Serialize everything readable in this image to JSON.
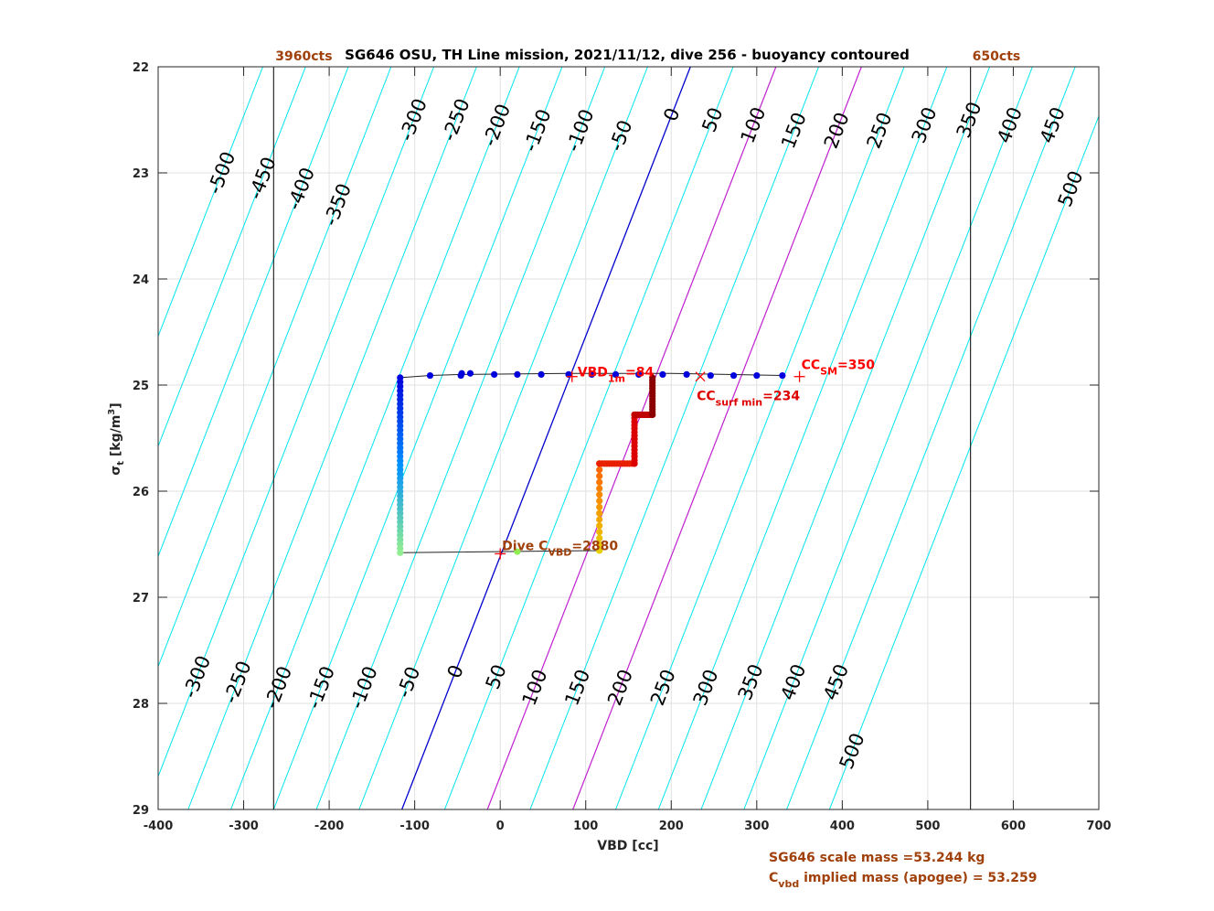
{
  "chart_data": {
    "type": "scatter",
    "title": "SG646 OSU, TH Line mission, 2021/11/12, dive 256 - buoyancy contoured",
    "xlabel": "VBD [cc]",
    "ylabel": "σt [kg/m3]",
    "ylabel_parts": {
      "sym": "σ",
      "sub": "t",
      "rest": " [kg/m",
      "sup": "3",
      "end": "]"
    },
    "xlim": [
      -400,
      700
    ],
    "ylim": [
      29,
      22
    ],
    "y_reversed": true,
    "grid": true,
    "xticks": [
      -400,
      -300,
      -200,
      -100,
      0,
      100,
      200,
      300,
      400,
      500,
      600,
      700
    ],
    "yticks": [
      22,
      23,
      24,
      25,
      26,
      27,
      28,
      29
    ],
    "contours": {
      "levels": [
        -500,
        -450,
        -400,
        -350,
        -300,
        -250,
        -200,
        -150,
        -100,
        -50,
        0,
        50,
        100,
        150,
        200,
        250,
        300,
        350,
        400,
        450,
        500
      ],
      "x_at_sigma29_for_zero": -115,
      "slope_cc_per_kgm3": -48.2,
      "zero_color": "#0000cd",
      "highlight_levels": [
        100,
        200
      ],
      "highlight_color": "#c020d0",
      "other_color": "#00e5ee",
      "labels_top": [
        {
          "level": -500,
          "sigma": 23.0
        },
        {
          "level": -450,
          "sigma": 23.05
        },
        {
          "level": -400,
          "sigma": 23.15
        },
        {
          "level": -350,
          "sigma": 23.3
        },
        {
          "level": -300,
          "sigma": 22.5
        },
        {
          "level": -250,
          "sigma": 22.5
        },
        {
          "level": -200,
          "sigma": 22.55
        },
        {
          "level": -150,
          "sigma": 22.6
        },
        {
          "level": -100,
          "sigma": 22.6
        },
        {
          "level": -50,
          "sigma": 22.65
        },
        {
          "level": 0,
          "sigma": 22.45
        },
        {
          "level": 50,
          "sigma": 22.5
        },
        {
          "level": 100,
          "sigma": 22.55
        },
        {
          "level": 150,
          "sigma": 22.6
        },
        {
          "level": 200,
          "sigma": 22.6
        },
        {
          "level": 250,
          "sigma": 22.6
        },
        {
          "level": 300,
          "sigma": 22.55
        },
        {
          "level": 350,
          "sigma": 22.5
        },
        {
          "level": 400,
          "sigma": 22.55
        },
        {
          "level": 450,
          "sigma": 22.55
        },
        {
          "level": 500,
          "sigma": 23.15
        }
      ],
      "labels_bottom": [
        {
          "level": -300,
          "sigma": 27.75
        },
        {
          "level": -250,
          "sigma": 27.8
        },
        {
          "level": -200,
          "sigma": 27.85
        },
        {
          "level": -150,
          "sigma": 27.85
        },
        {
          "level": -100,
          "sigma": 27.85
        },
        {
          "level": -50,
          "sigma": 27.8
        },
        {
          "level": 0,
          "sigma": 27.7
        },
        {
          "level": 50,
          "sigma": 27.75
        },
        {
          "level": 100,
          "sigma": 27.85
        },
        {
          "level": 150,
          "sigma": 27.85
        },
        {
          "level": 200,
          "sigma": 27.85
        },
        {
          "level": 250,
          "sigma": 27.85
        },
        {
          "level": 300,
          "sigma": 27.85
        },
        {
          "level": 350,
          "sigma": 27.8
        },
        {
          "level": 400,
          "sigma": 27.8
        },
        {
          "level": 450,
          "sigma": 27.8
        },
        {
          "level": 500,
          "sigma": 28.45
        }
      ]
    },
    "vertical_lines": [
      {
        "x": -265,
        "label": "3960cts"
      },
      {
        "x": 550,
        "label": "650cts"
      }
    ],
    "dive_path": [
      {
        "x": -117,
        "y": 24.93
      },
      {
        "x": -117,
        "y": 26.58
      },
      {
        "x": 116,
        "y": 26.56
      },
      {
        "x": 116,
        "y": 25.74
      },
      {
        "x": 157,
        "y": 25.74
      },
      {
        "x": 157,
        "y": 25.28
      },
      {
        "x": 178,
        "y": 25.28
      },
      {
        "x": 178,
        "y": 24.93
      }
    ],
    "dive_series": {
      "descent_x": -117,
      "descent_y_start": 24.93,
      "descent_y_end": 26.58,
      "descent_color_start": "#0000dd",
      "descent_color_end": "#90ee90",
      "bottom_points": [
        {
          "x": 20,
          "y": 26.57
        }
      ],
      "ascent_segments": [
        {
          "x": 116,
          "y_from": 26.56,
          "y_to": 25.74,
          "color_from": "#e8d000",
          "color_to": "#ff6000"
        },
        {
          "x_from": 116,
          "x_to": 157,
          "y": 25.74,
          "color": "#e82000"
        },
        {
          "x": 157,
          "y_from": 25.74,
          "y_to": 25.28,
          "color": "#dd0000"
        },
        {
          "x_from": 157,
          "x_to": 178,
          "y": 25.28,
          "color": "#c00000"
        },
        {
          "x": 178,
          "y_from": 25.28,
          "y_to": 24.93,
          "color": "#8b0000"
        }
      ]
    },
    "surface_line": [
      {
        "x": -117,
        "y": 24.93
      },
      {
        "x": -82,
        "y": 24.91
      },
      {
        "x": -45,
        "y": 24.9
      },
      {
        "x": 80,
        "y": 24.89
      },
      {
        "x": 200,
        "y": 24.89
      },
      {
        "x": 330,
        "y": 24.91
      }
    ],
    "surface_points": {
      "color": "#0000dd",
      "x": [
        -82,
        -46,
        -45,
        -35,
        -7,
        20,
        48,
        80,
        107,
        135,
        162,
        190,
        218,
        246,
        273,
        300,
        330
      ],
      "y": [
        24.91,
        24.91,
        24.89,
        24.89,
        24.9,
        24.9,
        24.9,
        24.9,
        24.9,
        24.9,
        24.9,
        24.9,
        24.9,
        24.91,
        24.91,
        24.91,
        24.91
      ]
    },
    "markers": [
      {
        "type": "plus",
        "x": 84,
        "y": 24.92,
        "color": "#ff0000",
        "label_main": "VBD",
        "label_sub": "1m",
        "label_end": "=84",
        "label_color": "#ff0000"
      },
      {
        "type": "cross",
        "x": 234,
        "y": 24.92,
        "color": "#ff0000",
        "label_main": "CC",
        "label_sub": "surf min",
        "label_end": "=234",
        "label_color": "#dd0000"
      },
      {
        "type": "plus",
        "x": 350,
        "y": 24.92,
        "color": "#ff0000",
        "label_main": "CC",
        "label_sub": "SM",
        "label_end": "=350",
        "label_color": "#ff0000"
      },
      {
        "type": "plus",
        "x": 0,
        "y": 26.59,
        "color": "#ff0000",
        "label_main": "Dive C",
        "label_sub": "VBD",
        "label_end": "=2880",
        "label_color": "#a0400a"
      }
    ],
    "annotations": [
      {
        "text": "SG646 scale mass =53.244 kg"
      },
      {
        "text_main": "C",
        "text_sub": "vbd",
        "text_end": " implied mass (apogee) = 53.259"
      }
    ],
    "annotation_color": "#a0400a"
  }
}
